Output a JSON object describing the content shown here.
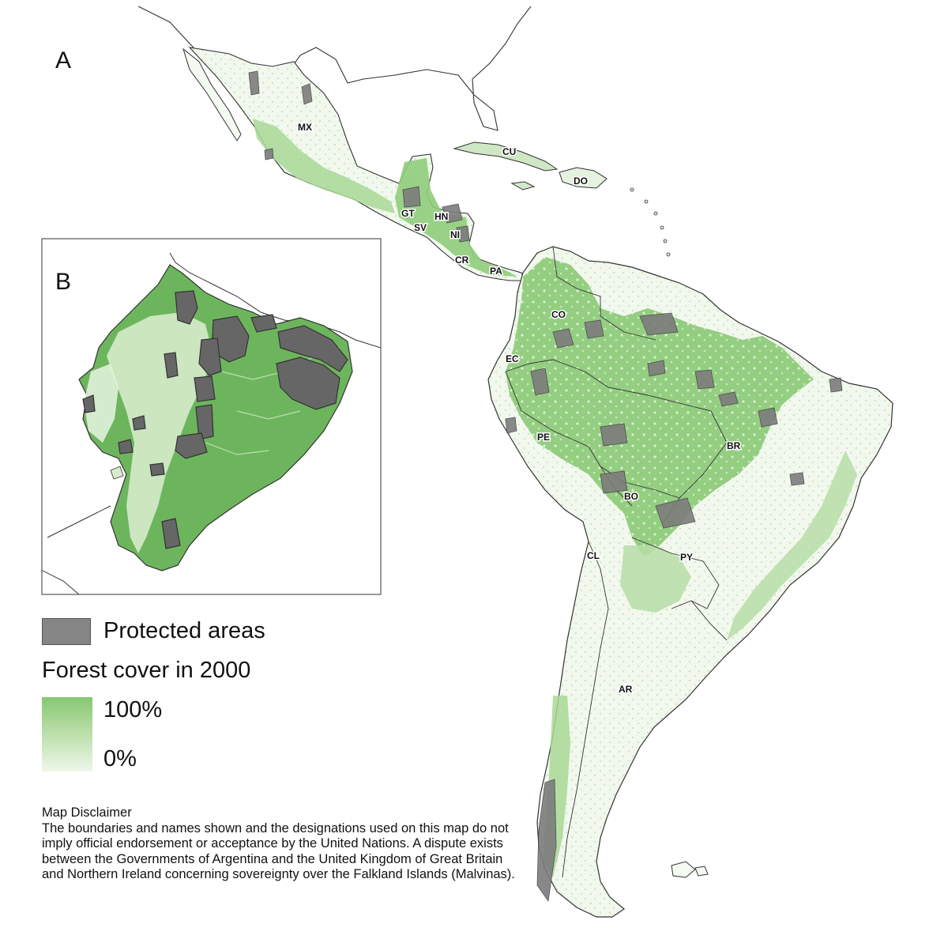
{
  "panels": {
    "main_label": "A",
    "inset_label": "B"
  },
  "legend": {
    "protected_label": "Protected areas",
    "forest_title": "Forest cover in 2000",
    "forest_max": "100%",
    "forest_min": "0%"
  },
  "colors": {
    "forest_high": "#86c870",
    "forest_low": "#eef7ea",
    "protected": "#858585",
    "outline": "#333333"
  },
  "countries": [
    {
      "code": "MX"
    },
    {
      "code": "CU"
    },
    {
      "code": "DO"
    },
    {
      "code": "GT"
    },
    {
      "code": "HN"
    },
    {
      "code": "SV"
    },
    {
      "code": "NI"
    },
    {
      "code": "CR"
    },
    {
      "code": "PA"
    },
    {
      "code": "CO"
    },
    {
      "code": "EC"
    },
    {
      "code": "PE"
    },
    {
      "code": "BR"
    },
    {
      "code": "BO"
    },
    {
      "code": "CL"
    },
    {
      "code": "PY"
    },
    {
      "code": "AR"
    }
  ],
  "disclaimer": {
    "title": "Map Disclaimer",
    "body": "The boundaries and names shown and the designations used on this map do not imply official endorsement or acceptance by the United Nations. A dispute exists between the Governments of Argentina and the United Kingdom of Great Britain and Northern Ireland concerning sovereignty over the Falkland Islands (Malvinas)."
  }
}
